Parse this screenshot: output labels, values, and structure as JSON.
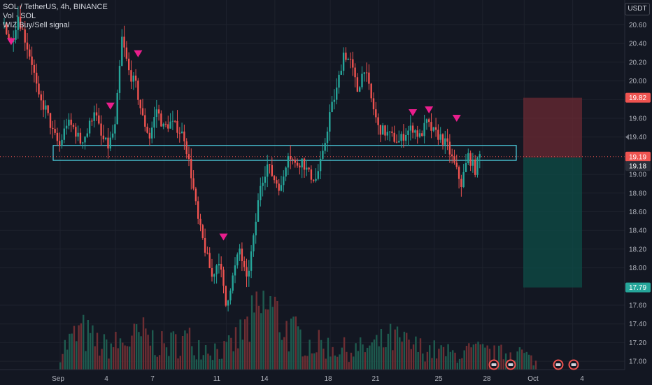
{
  "header": {
    "symbol_line": "SOL / TetherUS, 4h, BINANCE",
    "volume_line": "Vol · SOL",
    "indicator_line": "WIZ Buy/Sell signal"
  },
  "currency_button": "USDT",
  "colors": {
    "background": "#131722",
    "up": "#26a69a",
    "down": "#ef5350",
    "up_volume": "#1e5b4f",
    "down_volume": "#6e2e33",
    "zone": "#4dd0e1",
    "signal": "#e91e8c",
    "stop_zone": "#6b2a33",
    "target_zone": "#0e4a45",
    "price_line": "#ef5350"
  },
  "chart_data": {
    "type": "candlestick",
    "symbol": "SOL / TetherUS",
    "interval": "4h",
    "exchange": "BINANCE",
    "ylim": [
      16.9,
      20.75
    ],
    "y_ticks": [
      "20.60",
      "20.40",
      "20.20",
      "20.00",
      "19.80",
      "19.60",
      "19.40",
      "19.00",
      "18.80",
      "18.60",
      "18.40",
      "18.20",
      "18.00",
      "17.60",
      "17.40",
      "17.20",
      "17.00"
    ],
    "x_ticks": [
      "Sep",
      "4",
      "7",
      "11",
      "14",
      "18",
      "21",
      "25",
      "28",
      "Oct",
      "4"
    ],
    "price_labels": {
      "target_top": "19.82",
      "current": "19.19",
      "previous_close": "19.18",
      "stop_bottom": "17.79",
      "marker": "19.40"
    },
    "last_price": 19.19,
    "support_zone": {
      "low": 19.15,
      "high": 19.31
    },
    "position": {
      "entry": 19.18,
      "stop": 19.82,
      "target": 17.79
    },
    "price_anchors": [
      [
        0,
        20.62
      ],
      [
        3,
        20.4
      ],
      [
        6,
        20.7
      ],
      [
        9,
        20.45
      ],
      [
        12,
        20.2
      ],
      [
        15,
        19.8
      ],
      [
        18,
        19.7
      ],
      [
        21,
        19.45
      ],
      [
        24,
        19.3
      ],
      [
        27,
        19.55
      ],
      [
        30,
        19.5
      ],
      [
        33,
        19.35
      ],
      [
        36,
        19.45
      ],
      [
        39,
        19.7
      ],
      [
        42,
        19.4
      ],
      [
        45,
        19.3
      ],
      [
        48,
        19.5
      ],
      [
        51,
        20.45
      ],
      [
        54,
        20.1
      ],
      [
        57,
        19.95
      ],
      [
        60,
        19.6
      ],
      [
        63,
        19.4
      ],
      [
        66,
        19.7
      ],
      [
        69,
        19.5
      ],
      [
        72,
        19.55
      ],
      [
        75,
        19.5
      ],
      [
        78,
        19.4
      ],
      [
        81,
        19.0
      ],
      [
        84,
        18.5
      ],
      [
        87,
        18.2
      ],
      [
        90,
        17.9
      ],
      [
        93,
        18.1
      ],
      [
        96,
        17.6
      ],
      [
        99,
        17.9
      ],
      [
        102,
        18.2
      ],
      [
        105,
        17.85
      ],
      [
        108,
        18.3
      ],
      [
        111,
        18.9
      ],
      [
        114,
        19.1
      ],
      [
        117,
        18.95
      ],
      [
        120,
        18.85
      ],
      [
        123,
        19.25
      ],
      [
        126,
        19.1
      ],
      [
        129,
        19.15
      ],
      [
        132,
        19.0
      ],
      [
        135,
        18.95
      ],
      [
        138,
        19.2
      ],
      [
        141,
        19.65
      ],
      [
        144,
        19.9
      ],
      [
        147,
        20.3
      ],
      [
        150,
        20.2
      ],
      [
        153,
        19.9
      ],
      [
        156,
        20.15
      ],
      [
        159,
        19.8
      ],
      [
        162,
        19.5
      ],
      [
        165,
        19.45
      ],
      [
        168,
        19.4
      ],
      [
        171,
        19.35
      ],
      [
        174,
        19.45
      ],
      [
        177,
        19.5
      ],
      [
        180,
        19.4
      ],
      [
        183,
        19.55
      ],
      [
        186,
        19.45
      ],
      [
        189,
        19.4
      ],
      [
        192,
        19.3
      ],
      [
        195,
        19.1
      ],
      [
        198,
        18.9
      ],
      [
        201,
        19.2
      ],
      [
        204,
        19.05
      ],
      [
        206,
        19.2
      ]
    ],
    "volume_anchors": [
      [
        0,
        0.25
      ],
      [
        9,
        0.5
      ],
      [
        18,
        0.3
      ],
      [
        27,
        0.35
      ],
      [
        36,
        0.45
      ],
      [
        45,
        0.3
      ],
      [
        54,
        0.4
      ],
      [
        63,
        0.3
      ],
      [
        72,
        0.25
      ],
      [
        81,
        0.55
      ],
      [
        90,
        0.85
      ],
      [
        99,
        0.5
      ],
      [
        108,
        0.35
      ],
      [
        117,
        0.3
      ],
      [
        126,
        0.25
      ],
      [
        135,
        0.3
      ],
      [
        144,
        0.4
      ],
      [
        153,
        0.3
      ],
      [
        162,
        0.25
      ],
      [
        171,
        0.2
      ],
      [
        180,
        0.25
      ],
      [
        189,
        0.2
      ],
      [
        198,
        0.25
      ],
      [
        206,
        0.1
      ]
    ],
    "sell_signals": [
      {
        "index": 3,
        "price": 20.42
      },
      {
        "index": 46,
        "price": 19.73
      },
      {
        "index": 58,
        "price": 20.29
      },
      {
        "index": 95,
        "price": 18.33
      },
      {
        "index": 177,
        "price": 19.66
      },
      {
        "index": 184,
        "price": 19.69
      },
      {
        "index": 196,
        "price": 19.6
      }
    ]
  }
}
